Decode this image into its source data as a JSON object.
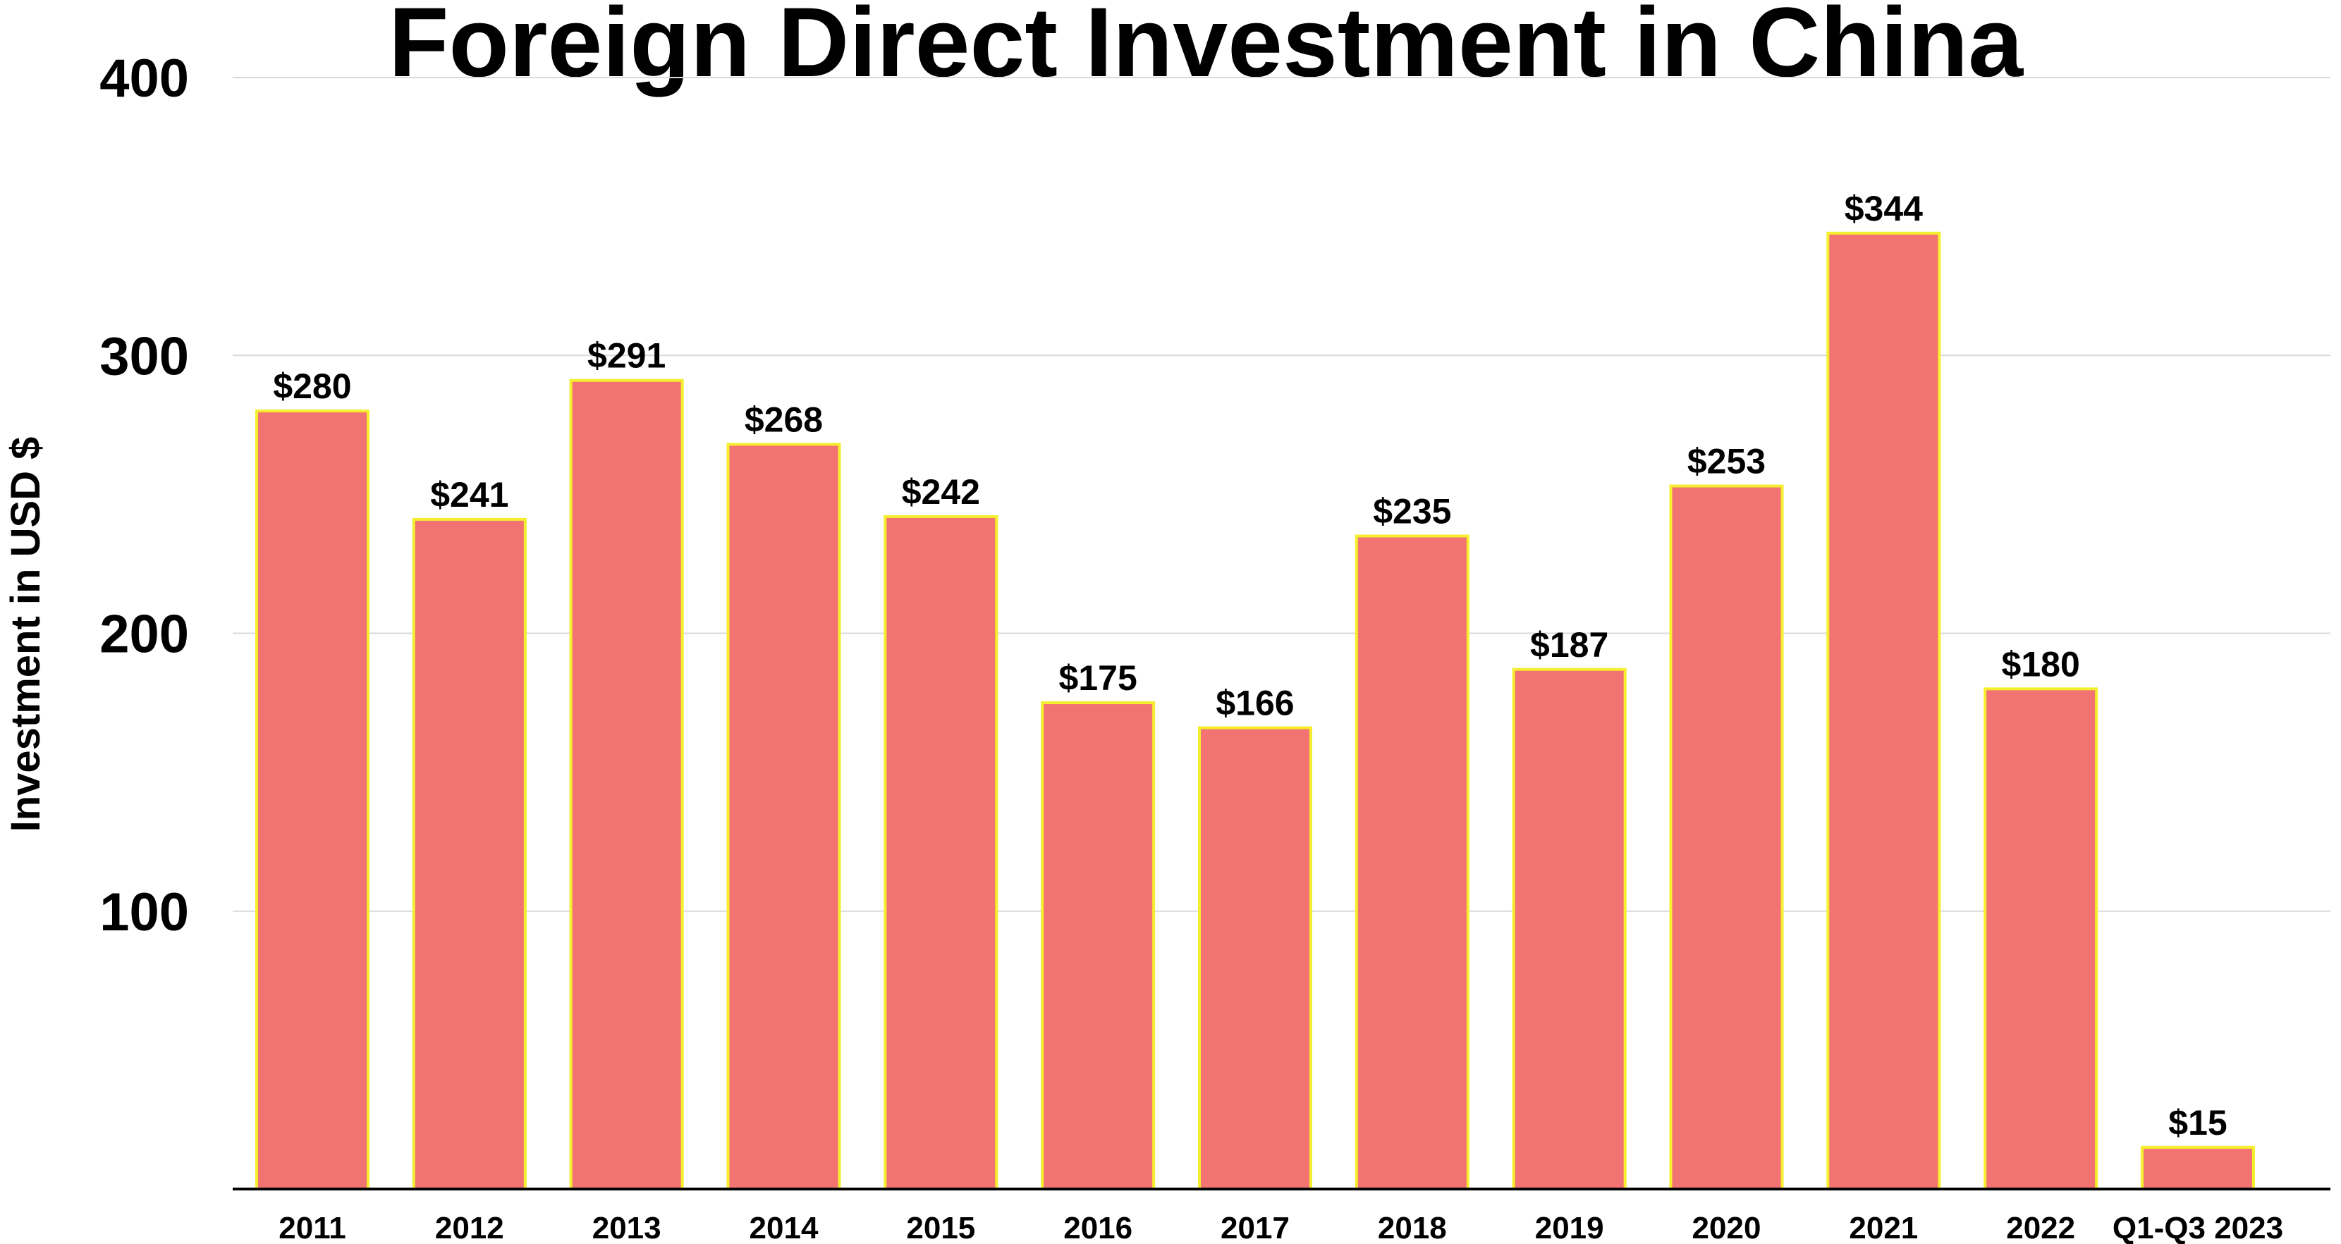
{
  "chart_data": {
    "type": "bar",
    "title": "Foreign Direct Investment in China",
    "xlabel": "",
    "ylabel": "Investment in USD $",
    "ylim": [
      0,
      400
    ],
    "yticks": [
      "100",
      "200",
      "300",
      "400"
    ],
    "grid": true,
    "legend": "none",
    "value_prefix": "$",
    "categories": [
      "2011",
      "2012",
      "2013",
      "2014",
      "2015",
      "2016",
      "2017",
      "2018",
      "2019",
      "2020",
      "2021",
      "2022",
      "Q1-Q3 2023"
    ],
    "values": [
      280,
      241,
      291,
      268,
      242,
      175,
      166,
      235,
      187,
      253,
      344,
      180,
      15
    ],
    "data_labels": [
      "$280",
      "$241",
      "$291",
      "$268",
      "$242",
      "$175",
      "$166",
      "$235",
      "$187",
      "$253",
      "$344",
      "$180",
      "$15"
    ],
    "colors": {
      "bar_fill": "#f37272",
      "bar_stroke": "#f5ee2e",
      "grid": "#d9d9d9",
      "axis": "#000000",
      "text": "#000000"
    }
  }
}
